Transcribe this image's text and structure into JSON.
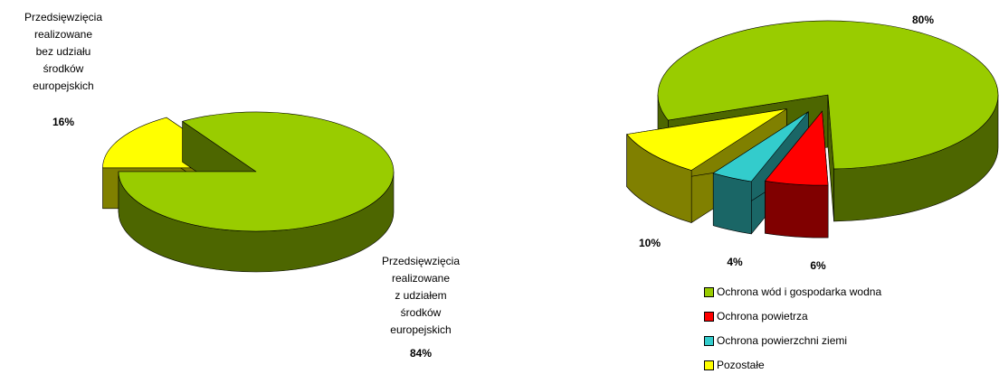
{
  "chart_data": [
    {
      "type": "pie",
      "categories": [
        "Przedsięwzięcia\nrealizowane\nbez udziału\nśrodków\neuropejskich",
        "Przedsięwzięcia\nrealizowane\nz udziałem\nśrodków\neuropejskich"
      ],
      "values": [
        16,
        84
      ],
      "value_labels": [
        "16%",
        "84%"
      ],
      "colors": [
        "#ffff00",
        "#99cc00"
      ],
      "legend": false
    },
    {
      "type": "pie",
      "categories": [
        "Ochrona wód i gospodarka wodna",
        "Ochrona powietrza",
        "Ochrona powierzchni ziemi",
        "Pozostałe"
      ],
      "values": [
        80,
        6,
        4,
        10
      ],
      "value_labels": [
        "80%",
        "6%",
        "4%",
        "10%"
      ],
      "colors": [
        "#99cc00",
        "#ff0000",
        "#33cccc",
        "#ffff00"
      ],
      "legend": "bottom"
    }
  ]
}
